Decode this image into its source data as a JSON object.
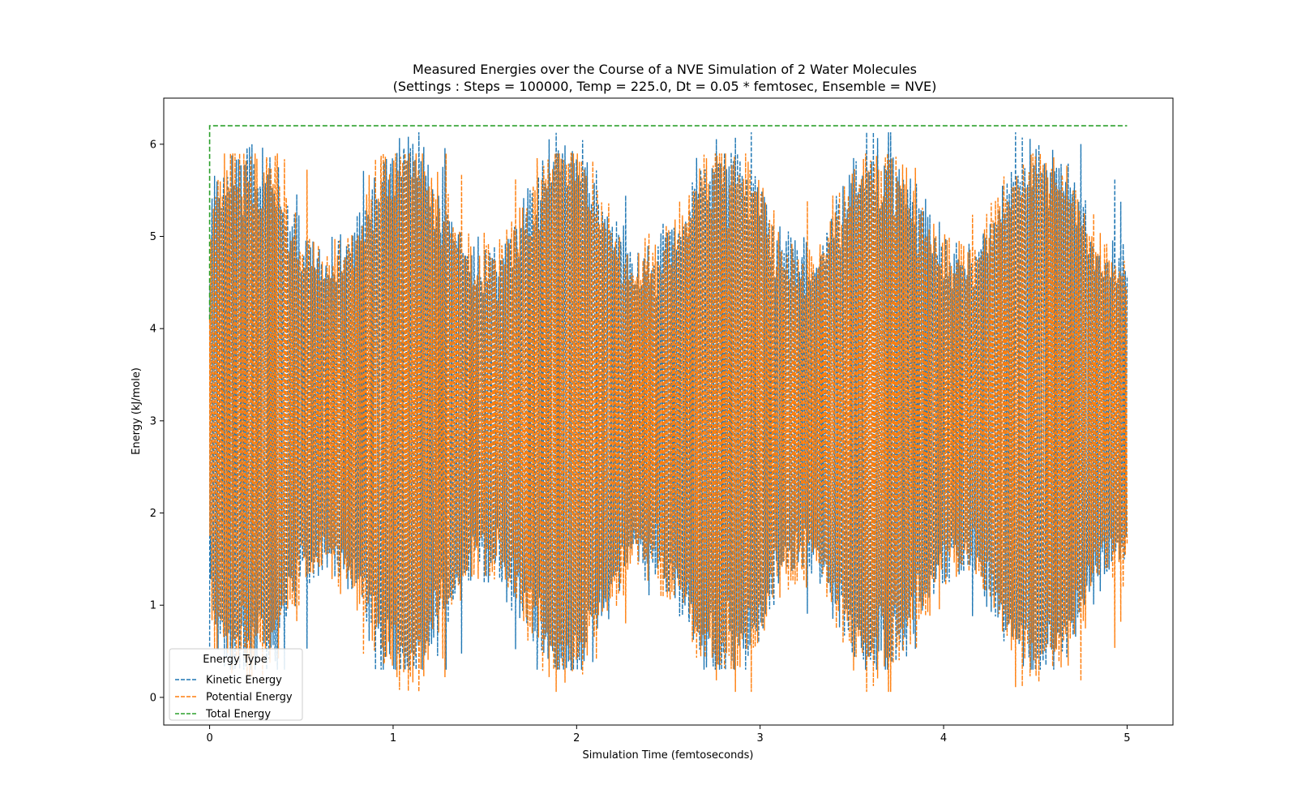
{
  "chart_data": {
    "type": "line",
    "title": "Measured Energies over the Course of a NVE Simulation of 2 Water Molecules",
    "subtitle": "(Settings : Steps = 100000, Temp = 225.0, Dt = 0.05 * femtosec, Ensemble = NVE)",
    "xlabel": "Simulation Time (femtoseconds)",
    "ylabel": "Energy (kJ/mole)",
    "xlim": [
      -0.25,
      5.25
    ],
    "ylim": [
      -0.3,
      6.5
    ],
    "xticks": [
      0,
      1,
      2,
      3,
      4,
      5
    ],
    "yticks": [
      0,
      1,
      2,
      3,
      4,
      5,
      6
    ],
    "grid": false,
    "legend": {
      "title": "Energy Type",
      "placement": "lower-left"
    },
    "series": [
      {
        "name": "Kinetic Energy",
        "color": "#1f77b4",
        "style": "dashed",
        "description_range": [
          0.3,
          6.13
        ],
        "x_start": 0,
        "x_end": 5,
        "typical_min": 1.0,
        "typical_max": 5.6,
        "mean": 3.1
      },
      {
        "name": "Potential Energy",
        "color": "#ff7f0e",
        "style": "dashed",
        "description_range": [
          0.06,
          5.9
        ],
        "x_start": 0,
        "x_end": 5,
        "typical_min": 0.6,
        "typical_max": 5.3,
        "mean": 3.1
      },
      {
        "name": "Total Energy",
        "color": "#2ca02c",
        "style": "dashed",
        "x": [
          0,
          5
        ],
        "values": [
          6.2,
          6.2
        ]
      }
    ]
  }
}
